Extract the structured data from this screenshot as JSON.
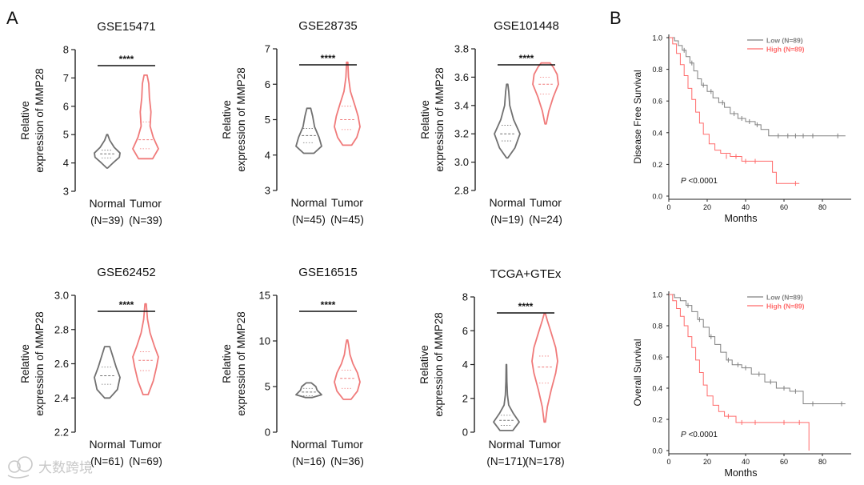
{
  "panels": {
    "a": "A",
    "b": "B"
  },
  "watermark": "大数跨境",
  "colors": {
    "normal": "#707070",
    "tumor": "#f07a7a",
    "axis": "#222222",
    "low": "#808080",
    "high": "#ff6b6b",
    "watermark": "#c8c8c8"
  },
  "violin_ylabel": [
    "Relative",
    "expression of MMP28"
  ],
  "chart_data": [
    {
      "type": "violin",
      "title": "GSE15471",
      "ylim": [
        3,
        8
      ],
      "yticks": [
        3,
        4,
        5,
        6,
        7,
        8
      ],
      "categories": [
        "Normal",
        "Tumor"
      ],
      "n_labels": [
        "(N=39)",
        "(N=39)"
      ],
      "significance": "****",
      "groups": [
        {
          "name": "Normal",
          "min": 3.82,
          "max": 5.0,
          "q1": 4.18,
          "median": 4.32,
          "q3": 4.45,
          "density": [
            [
              3.82,
              0.03
            ],
            [
              4.0,
              0.45
            ],
            [
              4.2,
              0.95
            ],
            [
              4.35,
              1.0
            ],
            [
              4.55,
              0.55
            ],
            [
              4.8,
              0.2
            ],
            [
              5.0,
              0.04
            ]
          ]
        },
        {
          "name": "Tumor",
          "min": 4.15,
          "max": 7.1,
          "q1": 4.5,
          "median": 4.82,
          "q3": 5.45,
          "density": [
            [
              4.15,
              0.55
            ],
            [
              4.5,
              1.0
            ],
            [
              4.9,
              0.6
            ],
            [
              5.3,
              0.35
            ],
            [
              5.8,
              0.42
            ],
            [
              6.3,
              0.3
            ],
            [
              6.8,
              0.25
            ],
            [
              7.1,
              0.12
            ]
          ]
        }
      ]
    },
    {
      "type": "violin",
      "title": "GSE28735",
      "ylim": [
        3,
        7
      ],
      "yticks": [
        3,
        4,
        5,
        6,
        7
      ],
      "categories": [
        "Normal",
        "Tumor"
      ],
      "n_labels": [
        "(N=45)",
        "(N=45)"
      ],
      "significance": "****",
      "groups": [
        {
          "name": "Normal",
          "min": 4.05,
          "max": 5.32,
          "q1": 4.35,
          "median": 4.55,
          "q3": 4.75,
          "density": [
            [
              4.05,
              0.4
            ],
            [
              4.25,
              1.0
            ],
            [
              4.5,
              0.8
            ],
            [
              4.8,
              0.45
            ],
            [
              5.1,
              0.3
            ],
            [
              5.32,
              0.15
            ]
          ]
        },
        {
          "name": "Tumor",
          "min": 4.28,
          "max": 6.62,
          "q1": 4.72,
          "median": 5.0,
          "q3": 5.38,
          "density": [
            [
              4.28,
              0.35
            ],
            [
              4.5,
              0.75
            ],
            [
              4.8,
              1.0
            ],
            [
              5.1,
              0.85
            ],
            [
              5.4,
              0.6
            ],
            [
              5.8,
              0.25
            ],
            [
              6.2,
              0.1
            ],
            [
              6.62,
              0.05
            ]
          ]
        }
      ]
    },
    {
      "type": "violin",
      "title": "GSE101448",
      "ylim": [
        2.8,
        3.8
      ],
      "yticks": [
        2.8,
        3.0,
        3.2,
        3.4,
        3.6,
        3.8
      ],
      "categories": [
        "Normal",
        "Tumor"
      ],
      "n_labels": [
        "(N=19)",
        "(N=24)"
      ],
      "significance": "****",
      "groups": [
        {
          "name": "Normal",
          "min": 3.03,
          "max": 3.55,
          "q1": 3.15,
          "median": 3.2,
          "q3": 3.26,
          "density": [
            [
              3.03,
              0.05
            ],
            [
              3.1,
              0.6
            ],
            [
              3.2,
              1.0
            ],
            [
              3.3,
              0.5
            ],
            [
              3.4,
              0.2
            ],
            [
              3.5,
              0.12
            ],
            [
              3.55,
              0.05
            ]
          ]
        },
        {
          "name": "Tumor",
          "min": 3.27,
          "max": 3.7,
          "q1": 3.48,
          "median": 3.55,
          "q3": 3.6,
          "density": [
            [
              3.27,
              0.05
            ],
            [
              3.36,
              0.25
            ],
            [
              3.46,
              0.6
            ],
            [
              3.55,
              1.0
            ],
            [
              3.62,
              0.9
            ],
            [
              3.67,
              0.6
            ],
            [
              3.7,
              0.35
            ]
          ]
        }
      ]
    },
    {
      "type": "violin",
      "title": "GSE62452",
      "ylim": [
        2.2,
        3.0
      ],
      "yticks": [
        2.2,
        2.4,
        2.6,
        2.8,
        3.0
      ],
      "categories": [
        "Normal",
        "Tumor"
      ],
      "n_labels": [
        "(N=61)",
        "(N=69)"
      ],
      "significance": "****",
      "groups": [
        {
          "name": "Normal",
          "min": 2.4,
          "max": 2.7,
          "q1": 2.48,
          "median": 2.53,
          "q3": 2.58,
          "density": [
            [
              2.4,
              0.2
            ],
            [
              2.45,
              0.8
            ],
            [
              2.52,
              1.0
            ],
            [
              2.58,
              0.7
            ],
            [
              2.64,
              0.45
            ],
            [
              2.7,
              0.2
            ]
          ]
        },
        {
          "name": "Tumor",
          "min": 2.42,
          "max": 2.95,
          "q1": 2.56,
          "median": 2.62,
          "q3": 2.67,
          "density": [
            [
              2.42,
              0.2
            ],
            [
              2.5,
              0.6
            ],
            [
              2.58,
              0.85
            ],
            [
              2.64,
              1.0
            ],
            [
              2.7,
              0.7
            ],
            [
              2.78,
              0.35
            ],
            [
              2.86,
              0.15
            ],
            [
              2.95,
              0.05
            ]
          ]
        }
      ]
    },
    {
      "type": "violin",
      "title": "GSE16515",
      "ylim": [
        0,
        15
      ],
      "yticks": [
        0,
        5,
        10,
        15
      ],
      "categories": [
        "Normal",
        "Tumor"
      ],
      "n_labels": [
        "(N=16)",
        "(N=36)"
      ],
      "significance": "****",
      "groups": [
        {
          "name": "Normal",
          "min": 3.8,
          "max": 5.4,
          "q1": 4.0,
          "median": 4.4,
          "q3": 4.8,
          "density": [
            [
              3.8,
              0.25
            ],
            [
              4.1,
              1.0
            ],
            [
              4.6,
              0.65
            ],
            [
              5.0,
              0.55
            ],
            [
              5.4,
              0.2
            ]
          ]
        },
        {
          "name": "Tumor",
          "min": 3.6,
          "max": 10.1,
          "q1": 4.8,
          "median": 5.9,
          "q3": 6.8,
          "density": [
            [
              3.6,
              0.3
            ],
            [
              4.5,
              0.8
            ],
            [
              5.5,
              1.0
            ],
            [
              6.5,
              0.8
            ],
            [
              7.5,
              0.45
            ],
            [
              8.5,
              0.22
            ],
            [
              9.5,
              0.12
            ],
            [
              10.1,
              0.04
            ]
          ]
        }
      ]
    },
    {
      "type": "violin",
      "title": "TCGA+GTEx",
      "ylim": [
        0,
        8
      ],
      "yticks": [
        0,
        2,
        4,
        6,
        8
      ],
      "categories": [
        "Normal",
        "Tumor"
      ],
      "n_labels": [
        "(N=171)",
        "(N=178)"
      ],
      "significance": "****",
      "groups": [
        {
          "name": "Normal",
          "min": 0.1,
          "max": 4.0,
          "q1": 0.4,
          "median": 0.7,
          "q3": 1.0,
          "density": [
            [
              0.1,
              0.5
            ],
            [
              0.6,
              1.0
            ],
            [
              1.1,
              0.55
            ],
            [
              1.6,
              0.18
            ],
            [
              2.2,
              0.08
            ],
            [
              3.0,
              0.04
            ],
            [
              4.0,
              0.02
            ]
          ]
        },
        {
          "name": "Tumor",
          "min": 0.6,
          "max": 7.0,
          "q1": 2.9,
          "median": 3.85,
          "q3": 4.5,
          "density": [
            [
              0.6,
              0.05
            ],
            [
              1.5,
              0.2
            ],
            [
              2.5,
              0.5
            ],
            [
              3.5,
              0.85
            ],
            [
              4.2,
              1.0
            ],
            [
              5.0,
              0.85
            ],
            [
              6.0,
              0.45
            ],
            [
              6.6,
              0.2
            ],
            [
              7.0,
              0.05
            ]
          ]
        }
      ]
    },
    {
      "type": "kaplan-meier",
      "ylabel": "Disease Free Survival",
      "xlabel": "Months",
      "xlim": [
        0,
        95
      ],
      "ylim": [
        0,
        1.0
      ],
      "xticks": [
        0,
        20,
        40,
        60,
        80
      ],
      "yticks": [
        0.0,
        0.2,
        0.4,
        0.6,
        0.8,
        1.0
      ],
      "annotation": "<0.0001",
      "annotation_p": "P",
      "series": [
        {
          "name": "Low (N=89)",
          "color_key": "low",
          "steps": [
            [
              0,
              1.0
            ],
            [
              3,
              0.98
            ],
            [
              5,
              0.95
            ],
            [
              7,
              0.92
            ],
            [
              9,
              0.88
            ],
            [
              11,
              0.84
            ],
            [
              13,
              0.79
            ],
            [
              15,
              0.74
            ],
            [
              17,
              0.7
            ],
            [
              20,
              0.66
            ],
            [
              23,
              0.62
            ],
            [
              26,
              0.59
            ],
            [
              29,
              0.56
            ],
            [
              32,
              0.52
            ],
            [
              36,
              0.49
            ],
            [
              40,
              0.47
            ],
            [
              45,
              0.45
            ],
            [
              48,
              0.42
            ],
            [
              52,
              0.38
            ],
            [
              92,
              0.38
            ]
          ],
          "censor": [
            [
              8,
              0.92
            ],
            [
              12,
              0.84
            ],
            [
              18,
              0.7
            ],
            [
              22,
              0.66
            ],
            [
              28,
              0.59
            ],
            [
              34,
              0.52
            ],
            [
              38,
              0.49
            ],
            [
              42,
              0.47
            ],
            [
              46,
              0.45
            ],
            [
              57,
              0.38
            ],
            [
              62,
              0.38
            ],
            [
              66,
              0.38
            ],
            [
              70,
              0.38
            ],
            [
              75,
              0.38
            ],
            [
              88,
              0.38
            ]
          ]
        },
        {
          "name": "High (N=89)",
          "color_key": "high",
          "steps": [
            [
              0,
              1.0
            ],
            [
              2,
              0.96
            ],
            [
              4,
              0.9
            ],
            [
              6,
              0.83
            ],
            [
              8,
              0.76
            ],
            [
              10,
              0.68
            ],
            [
              12,
              0.61
            ],
            [
              14,
              0.53
            ],
            [
              16,
              0.46
            ],
            [
              18,
              0.39
            ],
            [
              21,
              0.33
            ],
            [
              24,
              0.29
            ],
            [
              27,
              0.27
            ],
            [
              32,
              0.25
            ],
            [
              38,
              0.22
            ],
            [
              54,
              0.15
            ],
            [
              56,
              0.08
            ],
            [
              68,
              0.08
            ]
          ],
          "censor": [
            [
              30,
              0.25
            ],
            [
              35,
              0.25
            ],
            [
              40,
              0.22
            ],
            [
              45,
              0.22
            ],
            [
              66,
              0.08
            ]
          ]
        }
      ]
    },
    {
      "type": "kaplan-meier",
      "ylabel": "Overall Survival",
      "xlabel": "Months",
      "xlim": [
        0,
        95
      ],
      "ylim": [
        0,
        1.0
      ],
      "xticks": [
        0,
        20,
        40,
        60,
        80
      ],
      "yticks": [
        0.0,
        0.2,
        0.4,
        0.6,
        0.8,
        1.0
      ],
      "annotation": "<0.0001",
      "annotation_p": "P",
      "series": [
        {
          "name": "Low (N=89)",
          "color_key": "low",
          "steps": [
            [
              0,
              1.0
            ],
            [
              3,
              0.98
            ],
            [
              6,
              0.96
            ],
            [
              9,
              0.93
            ],
            [
              12,
              0.89
            ],
            [
              15,
              0.84
            ],
            [
              18,
              0.79
            ],
            [
              21,
              0.73
            ],
            [
              24,
              0.68
            ],
            [
              27,
              0.63
            ],
            [
              30,
              0.58
            ],
            [
              33,
              0.55
            ],
            [
              38,
              0.53
            ],
            [
              43,
              0.49
            ],
            [
              50,
              0.44
            ],
            [
              56,
              0.4
            ],
            [
              63,
              0.38
            ],
            [
              70,
              0.3
            ],
            [
              92,
              0.3
            ]
          ],
          "censor": [
            [
              10,
              0.93
            ],
            [
              16,
              0.84
            ],
            [
              22,
              0.73
            ],
            [
              31,
              0.58
            ],
            [
              36,
              0.55
            ],
            [
              40,
              0.53
            ],
            [
              47,
              0.49
            ],
            [
              53,
              0.44
            ],
            [
              60,
              0.4
            ],
            [
              66,
              0.38
            ],
            [
              75,
              0.3
            ],
            [
              90,
              0.3
            ]
          ]
        },
        {
          "name": "High (N=89)",
          "color_key": "high",
          "steps": [
            [
              0,
              1.0
            ],
            [
              2,
              0.96
            ],
            [
              4,
              0.91
            ],
            [
              6,
              0.86
            ],
            [
              8,
              0.8
            ],
            [
              10,
              0.73
            ],
            [
              12,
              0.66
            ],
            [
              14,
              0.58
            ],
            [
              16,
              0.5
            ],
            [
              18,
              0.42
            ],
            [
              20,
              0.35
            ],
            [
              23,
              0.29
            ],
            [
              26,
              0.25
            ],
            [
              29,
              0.22
            ],
            [
              35,
              0.18
            ],
            [
              73,
              0.18
            ],
            [
              73,
              0.0
            ]
          ],
          "censor": [
            [
              31,
              0.22
            ],
            [
              38,
              0.18
            ],
            [
              45,
              0.18
            ],
            [
              60,
              0.18
            ],
            [
              68,
              0.18
            ]
          ]
        }
      ]
    }
  ]
}
